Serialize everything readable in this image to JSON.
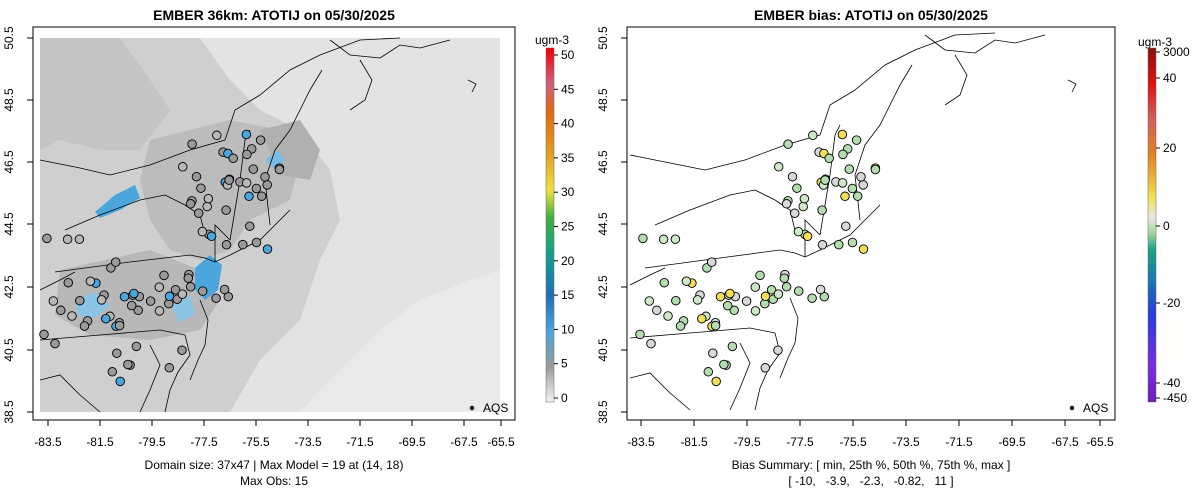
{
  "panels": [
    {
      "title": "EMBER 36km: ATOTIJ on 05/30/2025",
      "x_ticks": [
        "-83.5",
        "-81.5",
        "-79.5",
        "-77.5",
        "-75.5",
        "-73.5",
        "-71.5",
        "-69.5",
        "-67.5",
        "-65.5"
      ],
      "y_ticks": [
        "50.5",
        "48.5",
        "46.5",
        "44.5",
        "42.5",
        "40.5",
        "38.5"
      ],
      "legend_label": "AQS",
      "footer_line1": "Domain size: 37x47 | Max Model = 19 at (14, 18)",
      "footer_line2": "Max Obs: 15",
      "colorbar": {
        "unit": "ugm-3",
        "labels": [
          "50",
          "45",
          "40",
          "35",
          "30",
          "25",
          "20",
          "15",
          "10",
          "5",
          "0"
        ]
      }
    },
    {
      "title": "EMBER bias: ATOTIJ on 05/30/2025",
      "x_ticks": [
        "-83.5",
        "-81.5",
        "-79.5",
        "-77.5",
        "-75.5",
        "-73.5",
        "-71.5",
        "-69.5",
        "-67.5",
        "-65.5"
      ],
      "y_ticks": [
        "50.5",
        "48.5",
        "46.5",
        "44.5",
        "42.5",
        "40.5",
        "38.5"
      ],
      "legend_label": "AQS",
      "footer_line1": "Bias Summary: [ min, 25th %, 50th %, 75th %, max ]",
      "footer_line2": "[ -10,   -3.9,   -2.3,   -0.82,   11 ]",
      "colorbar": {
        "unit": "ugm-3",
        "labels": [
          "3000",
          "40",
          "20",
          "0",
          "-20",
          "-40",
          "-450"
        ]
      }
    }
  ],
  "colors": {
    "grid_light": "#e3e3e3",
    "grid_mid": "#cfcfcf",
    "grid_dark": "#b4b4b4",
    "grid_blue": "#4aa6dc",
    "obs_gray": "#9a9a9a",
    "obs_blue": "#4aa6dc",
    "bias_green": "#b4dcb0",
    "bias_gray": "#d8d8d8",
    "bias_yellow": "#f0df58"
  }
}
